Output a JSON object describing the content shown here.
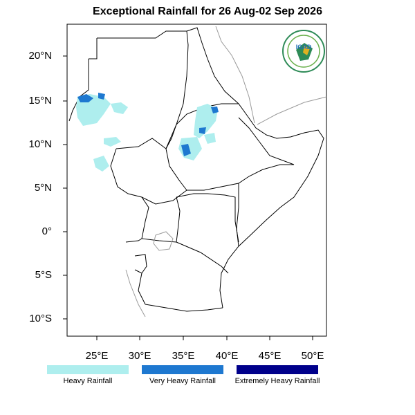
{
  "title": "Exceptional Rainfall for 26 Aug-02 Sep 2026",
  "logo_text": "IGAD",
  "lat_labels": [
    "20°N",
    "15°N",
    "10°N",
    "5°N",
    "0°",
    "5°S",
    "10°S"
  ],
  "lon_labels": [
    "25°E",
    "30°E",
    "35°E",
    "40°E",
    "45°E",
    "50°E"
  ],
  "legend": [
    {
      "label": "Heavy Rainfall",
      "color": "#aeeeee"
    },
    {
      "label": "Very Heavy Rainfall",
      "color": "#1e78d0"
    },
    {
      "label": "Extremely Heavy Rainfall",
      "color": "#00008b"
    }
  ]
}
